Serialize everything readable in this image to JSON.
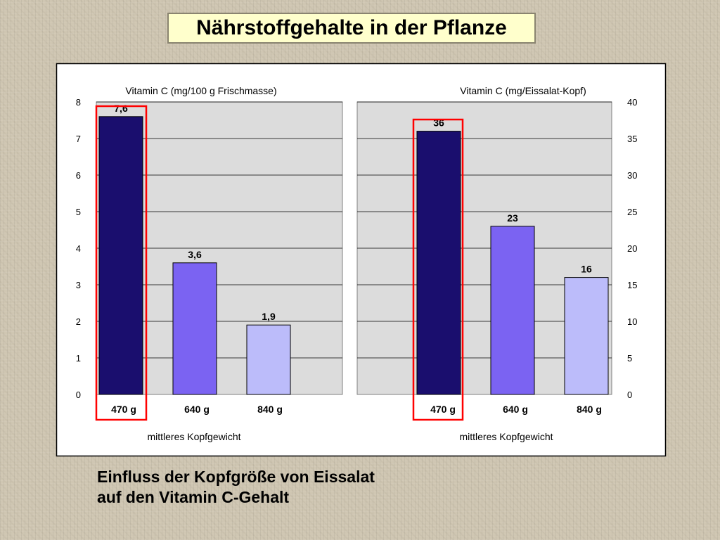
{
  "slide": {
    "title": "Nährstoffgehalte in der Pflanze",
    "caption_line1": "Einfluss der Kopfgröße von Eissalat",
    "caption_line2": "auf den Vitamin C-Gehalt"
  },
  "colors": {
    "bar_470": "#1a0e6e",
    "bar_640": "#7b63f2",
    "bar_840": "#bcbcfa",
    "plot_bg": "#dcdcdc",
    "highlight": "#ff0000"
  },
  "chart_data": [
    {
      "type": "bar",
      "title": "Vitamin C (mg/100 g Frischmasse)",
      "xlabel": "mittleres Kopfgewicht",
      "ylabel": "",
      "categories": [
        "470 g",
        "640 g",
        "840 g"
      ],
      "values": [
        7.6,
        3.6,
        1.9
      ],
      "value_labels": [
        "7,6",
        "3,6",
        "1,9"
      ],
      "ylim": [
        0,
        8
      ],
      "yticks": [
        "0",
        "1",
        "2",
        "3",
        "4",
        "5",
        "6",
        "7",
        "8"
      ],
      "axis_side": "left",
      "grid": true,
      "highlighted_category": "470 g"
    },
    {
      "type": "bar",
      "title": "Vitamin C (mg/Eissalat-Kopf)",
      "xlabel": "mittleres Kopfgewicht",
      "ylabel": "",
      "categories": [
        "470 g",
        "640 g",
        "840 g"
      ],
      "values": [
        36,
        23,
        16
      ],
      "value_labels": [
        "36",
        "23",
        "16"
      ],
      "ylim": [
        0,
        40
      ],
      "yticks": [
        "0",
        "5",
        "10",
        "15",
        "20",
        "25",
        "30",
        "35",
        "40"
      ],
      "axis_side": "right",
      "grid": true,
      "highlighted_category": "470 g"
    }
  ]
}
